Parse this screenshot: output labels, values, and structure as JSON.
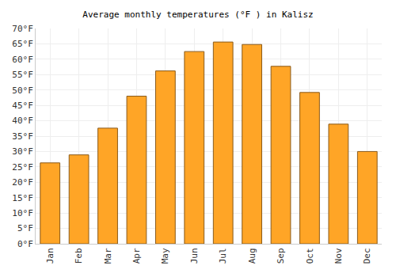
{
  "chart_data": {
    "type": "bar",
    "title": "Average monthly temperatures (°F ) in Kalisz",
    "categories": [
      "Jan",
      "Feb",
      "Mar",
      "Apr",
      "May",
      "Jun",
      "Jul",
      "Aug",
      "Sep",
      "Oct",
      "Nov",
      "Dec"
    ],
    "values": [
      26.3,
      28.9,
      37.6,
      48.0,
      56.2,
      62.5,
      65.6,
      64.8,
      57.7,
      49.2,
      38.9,
      30.0
    ],
    "color": "#ffa526",
    "ylim": [
      0,
      70
    ],
    "yticks": [
      {
        "value": 0,
        "label": "0°F"
      },
      {
        "value": 5,
        "label": "5°F"
      },
      {
        "value": 10,
        "label": "10°F"
      },
      {
        "value": 15,
        "label": "15°F"
      },
      {
        "value": 20,
        "label": "20°F"
      },
      {
        "value": 25,
        "label": "25°F"
      },
      {
        "value": 30,
        "label": "30°F"
      },
      {
        "value": 35,
        "label": "35°F"
      },
      {
        "value": 40,
        "label": "40°F"
      },
      {
        "value": 45,
        "label": "45°F"
      },
      {
        "value": 50,
        "label": "50°F"
      },
      {
        "value": 55,
        "label": "55°F"
      },
      {
        "value": 60,
        "label": "60°F"
      },
      {
        "value": 65,
        "label": "65°F"
      },
      {
        "value": 70,
        "label": "70°F"
      }
    ],
    "grid": true
  }
}
